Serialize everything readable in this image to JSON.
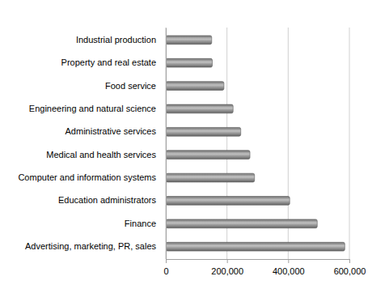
{
  "chart_data": {
    "type": "bar",
    "orientation": "horizontal",
    "categories": [
      "Industrial production",
      "Property and real estate",
      "Food service",
      "Engineering and natural science",
      "Administrative services",
      "Medical and health services",
      "Computer and information systems",
      "Education administrators",
      "Finance",
      "Advertising, marketing, PR, sales"
    ],
    "values": [
      150000,
      152000,
      190000,
      220000,
      245000,
      275000,
      290000,
      405000,
      495000,
      585000
    ],
    "color": "#8c8c8c",
    "xlim": [
      0,
      600000
    ],
    "xticks": [
      0,
      {
        "value": 200000,
        "label": "200,000"
      },
      {
        "value": 400000,
        "label": "400,000"
      },
      {
        "value": 600000,
        "label": "600,000"
      }
    ],
    "grid": true
  }
}
